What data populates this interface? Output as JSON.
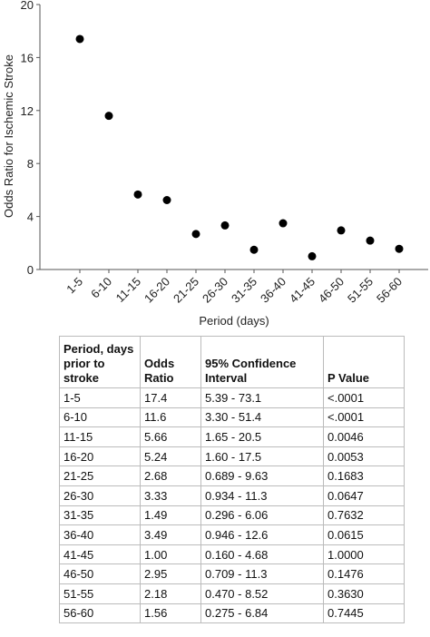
{
  "chart_data": {
    "type": "scatter",
    "y_label": "Odds Ratio for Ischemic Stroke",
    "x_label": "Period (days)",
    "categories": [
      "1-5",
      "6-10",
      "11-15",
      "16-20",
      "21-25",
      "26-30",
      "31-35",
      "36-40",
      "41-45",
      "46-50",
      "51-55",
      "56-60"
    ],
    "values": [
      17.4,
      11.6,
      5.66,
      5.24,
      2.68,
      3.33,
      1.49,
      3.49,
      1.0,
      2.95,
      2.18,
      1.56
    ],
    "color": "#000000",
    "ylim": [
      0,
      20
    ],
    "yticks": [
      0,
      4,
      8,
      12,
      16,
      20
    ],
    "grid": false
  },
  "table": {
    "header": [
      "Period, days prior to stroke",
      "Odds Ratio",
      "95% Confidence Interval",
      "P Value"
    ],
    "rows": [
      [
        "1-5",
        "17.4",
        "5.39 - 73.1",
        "<.0001"
      ],
      [
        "6-10",
        "11.6",
        "3.30 - 51.4",
        "<.0001"
      ],
      [
        "11-15",
        "5.66",
        "1.65 - 20.5",
        "0.0046"
      ],
      [
        "16-20",
        "5.24",
        "1.60 - 17.5",
        "0.0053"
      ],
      [
        "21-25",
        "2.68",
        "0.689 - 9.63",
        "0.1683"
      ],
      [
        "26-30",
        "3.33",
        "0.934 - 11.3",
        "0.0647"
      ],
      [
        "31-35",
        "1.49",
        "0.296 - 6.06",
        "0.7632"
      ],
      [
        "36-40",
        "3.49",
        "0.946 - 12.6",
        "0.0615"
      ],
      [
        "41-45",
        "1.00",
        "0.160 - 4.68",
        "1.0000"
      ],
      [
        "46-50",
        "2.95",
        "0.709 - 11.3",
        "0.1476"
      ],
      [
        "51-55",
        "2.18",
        "0.470 - 8.52",
        "0.3630"
      ],
      [
        "56-60",
        "1.56",
        "0.275 - 6.84",
        "0.7445"
      ]
    ]
  }
}
